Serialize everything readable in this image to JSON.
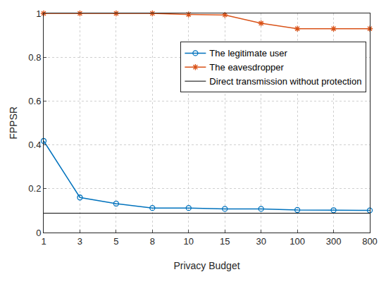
{
  "chart_data": {
    "type": "line",
    "x_label": "Privacy Budget",
    "y_label": "FPPSR",
    "categories": [
      "1",
      "3",
      "5",
      "8",
      "10",
      "15",
      "30",
      "100",
      "300",
      "800"
    ],
    "series": [
      {
        "name": "The legitimate user",
        "color": "#0072bd",
        "marker": "circle",
        "line_style": "solid",
        "values": [
          0.418,
          0.16,
          0.132,
          0.112,
          0.112,
          0.108,
          0.108,
          0.103,
          0.102,
          0.101
        ]
      },
      {
        "name": "The eavesdropper",
        "color": "#d95319",
        "marker": "asterisk",
        "line_style": "solid",
        "values": [
          1,
          1,
          1,
          1,
          0.995,
          0.993,
          0.955,
          0.93,
          0.93,
          0.93
        ]
      },
      {
        "name": "Direct transmission without protection",
        "color": "#000000",
        "marker": "none",
        "line_style": "solid",
        "values": [
          0.088,
          0.088,
          0.088,
          0.088,
          0.088,
          0.088,
          0.088,
          0.088,
          0.088,
          0.088
        ]
      }
    ],
    "ylim": [
      0,
      1
    ],
    "yticks": [
      0,
      0.2,
      0.4,
      0.6,
      0.8,
      1
    ],
    "grid": true,
    "legend": "upper right"
  }
}
